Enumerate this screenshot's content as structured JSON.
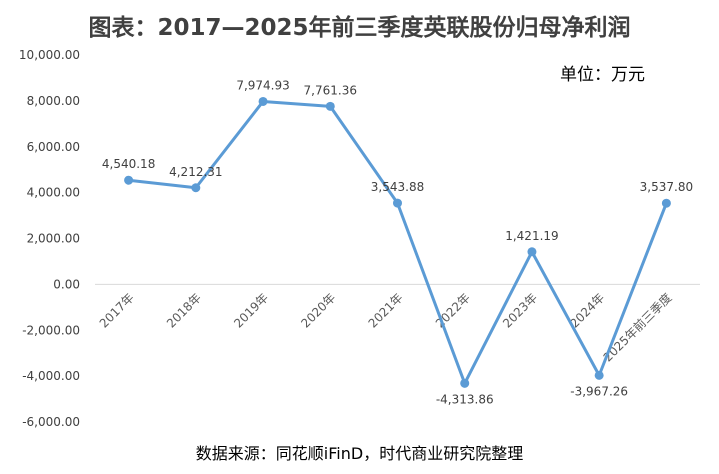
{
  "chart_data": {
    "type": "line",
    "title": "图表：2017—2025年前三季度英联股份归母净利润",
    "unit_label": "单位：万元",
    "source": "数据来源：同花顺iFinD，时代商业研究院整理",
    "categories": [
      "2017年",
      "2018年",
      "2019年",
      "2020年",
      "2021年",
      "2022年",
      "2023年",
      "2024年",
      "2025年前三季度"
    ],
    "series": [
      {
        "values": [
          4540.18,
          4212.31,
          7974.93,
          7761.36,
          3543.88,
          -4313.86,
          1421.19,
          -3967.26,
          3537.8
        ],
        "labels": [
          "4,540.18",
          "4,212.31",
          "7,974.93",
          "7,761.36",
          "3,543.88",
          "-4,313.86",
          "1,421.19",
          "-3,967.26",
          "3,537.80"
        ]
      }
    ],
    "yticks": [
      "10,000.00",
      "8,000.00",
      "6,000.00",
      "4,000.00",
      "2,000.00",
      "0.00",
      "-2,000.00",
      "-4,000.00",
      "-6,000.00"
    ],
    "ylim": [
      -6000,
      10000
    ],
    "line_color": "#5B9BD5",
    "grid": false
  }
}
